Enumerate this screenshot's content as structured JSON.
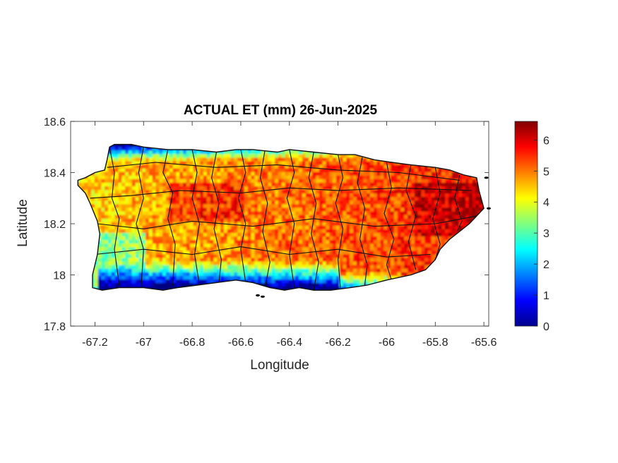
{
  "chart_data": {
    "type": "heatmap",
    "title": "ACTUAL ET (mm) 26-Jun-2025",
    "xlabel": "Longitude",
    "ylabel": "Latitude",
    "xlim": [
      -67.3,
      -65.58
    ],
    "ylim": [
      17.8,
      18.6
    ],
    "x_ticks": [
      -67.2,
      -67.0,
      -66.8,
      -66.6,
      -66.4,
      -66.2,
      -66.0,
      -65.8,
      -65.6
    ],
    "x_tick_labels": [
      "-67.2",
      "-67",
      "-66.8",
      "-66.6",
      "-66.4",
      "-66.2",
      "-66",
      "-65.8",
      "-65.6"
    ],
    "y_ticks": [
      17.8,
      18.0,
      18.2,
      18.4,
      18.6
    ],
    "y_tick_labels": [
      "17.8",
      "18",
      "18.2",
      "18.4",
      "18.6"
    ],
    "colorbar": {
      "colormap": "jet",
      "range": [
        0,
        6.6
      ],
      "ticks": [
        0,
        1,
        2,
        3,
        4,
        5,
        6
      ],
      "tick_labels": [
        "0",
        "1",
        "2",
        "3",
        "4",
        "5",
        "6"
      ]
    },
    "grid": false,
    "legend": "colorbar-right",
    "colors": {
      "boundary": "#000000",
      "background": "#ffffff"
    }
  }
}
